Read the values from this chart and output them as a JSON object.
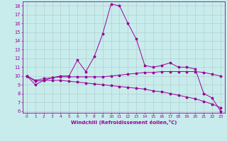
{
  "xlabel": "Windchill (Refroidissement éolien,°C)",
  "bg_color": "#c8ecec",
  "line_color": "#990099",
  "grid_color": "#b0c8c8",
  "xlim": [
    -0.5,
    23.5
  ],
  "ylim": [
    5.8,
    18.5
  ],
  "yticks": [
    6,
    7,
    8,
    9,
    10,
    11,
    12,
    13,
    14,
    15,
    16,
    17,
    18
  ],
  "xticks": [
    0,
    1,
    2,
    3,
    4,
    5,
    6,
    7,
    8,
    9,
    10,
    11,
    12,
    13,
    14,
    15,
    16,
    17,
    18,
    19,
    20,
    21,
    22,
    23
  ],
  "line1_x": [
    0,
    1,
    2,
    3,
    4,
    5,
    6,
    7,
    8,
    9,
    10,
    11,
    12,
    13,
    14,
    15,
    16,
    17,
    18,
    19,
    20,
    21,
    22,
    23
  ],
  "line1_y": [
    10.0,
    9.0,
    9.5,
    9.8,
    10.0,
    10.0,
    11.8,
    10.5,
    12.2,
    14.8,
    18.2,
    18.0,
    16.0,
    14.2,
    11.2,
    11.0,
    11.2,
    11.5,
    11.0,
    11.0,
    10.8,
    8.0,
    7.5,
    6.0
  ],
  "line2_x": [
    0,
    1,
    2,
    3,
    4,
    5,
    6,
    7,
    8,
    9,
    10,
    11,
    12,
    13,
    14,
    15,
    16,
    17,
    18,
    19,
    20,
    21,
    22,
    23
  ],
  "line2_y": [
    10.0,
    9.5,
    9.7,
    9.8,
    9.9,
    9.9,
    9.9,
    9.9,
    9.9,
    9.9,
    10.0,
    10.1,
    10.2,
    10.3,
    10.4,
    10.4,
    10.5,
    10.5,
    10.5,
    10.5,
    10.5,
    10.4,
    10.2,
    10.0
  ],
  "line3_x": [
    0,
    1,
    2,
    3,
    4,
    5,
    6,
    7,
    8,
    9,
    10,
    11,
    12,
    13,
    14,
    15,
    16,
    17,
    18,
    19,
    20,
    21,
    22,
    23
  ],
  "line3_y": [
    10.0,
    9.4,
    9.5,
    9.5,
    9.5,
    9.4,
    9.3,
    9.2,
    9.1,
    9.0,
    8.9,
    8.8,
    8.7,
    8.6,
    8.5,
    8.3,
    8.2,
    8.0,
    7.8,
    7.6,
    7.4,
    7.1,
    6.8,
    6.4
  ]
}
